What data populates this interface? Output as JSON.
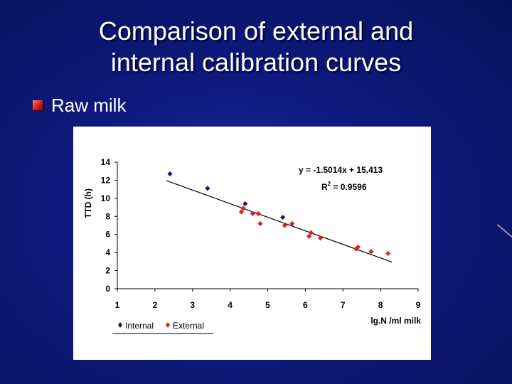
{
  "slide": {
    "title_line1": "Comparison of external and",
    "title_line2": "internal calibration curves",
    "bullet": "Raw milk"
  },
  "colors": {
    "internal": "#1a1a7a",
    "external": "#e0201a",
    "bullet": "#d81a10"
  },
  "chart_data": {
    "type": "scatter",
    "xlabel": "lg.N /ml milk",
    "ylabel": "TTD (h)",
    "xlim": [
      1,
      9
    ],
    "ylim": [
      0,
      14
    ],
    "xticks": [
      1,
      2,
      3,
      4,
      5,
      6,
      7,
      8,
      9
    ],
    "yticks": [
      0,
      2,
      4,
      6,
      8,
      10,
      12,
      14
    ],
    "grid": false,
    "legend_position": "bottom-left",
    "series": [
      {
        "name": "Internal",
        "marker": "diamond",
        "color": "#1a1a7a",
        "points": [
          [
            2.4,
            12.7
          ],
          [
            3.4,
            11.1
          ],
          [
            4.4,
            9.4
          ],
          [
            5.4,
            7.9
          ]
        ]
      },
      {
        "name": "External",
        "marker": "diamond",
        "color": "#e0201a",
        "points": [
          [
            4.3,
            8.5
          ],
          [
            4.35,
            8.9
          ],
          [
            4.6,
            8.3
          ],
          [
            4.75,
            8.3
          ],
          [
            4.8,
            7.2
          ],
          [
            5.45,
            7.0
          ],
          [
            5.65,
            7.2
          ],
          [
            6.1,
            5.8
          ],
          [
            6.15,
            6.2
          ],
          [
            6.4,
            5.6
          ],
          [
            7.35,
            4.4
          ],
          [
            7.4,
            4.6
          ],
          [
            7.75,
            4.1
          ],
          [
            8.2,
            3.9
          ]
        ]
      }
    ],
    "trendline": {
      "slope": -1.5014,
      "intercept": 15.413,
      "x_range": [
        2.3,
        8.3
      ]
    },
    "annotations": {
      "equation": "y = -1.5014x + 15.413",
      "r2_prefix": "R",
      "r2_sup": "2",
      "r2_value": " = 0.9596"
    }
  }
}
